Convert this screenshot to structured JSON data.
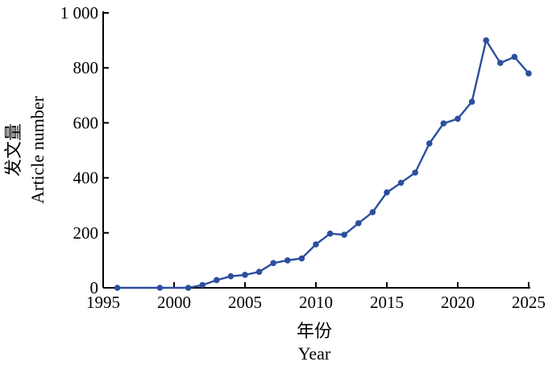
{
  "chart_data": {
    "type": "line",
    "xlabel_cn": "年份",
    "xlabel_en": "Year",
    "ylabel_cn": "发文量",
    "ylabel_en": "Article number",
    "xlim": [
      1995,
      2025
    ],
    "ylim": [
      0,
      1000
    ],
    "x_ticks": [
      1995,
      2000,
      2005,
      2010,
      2015,
      2020,
      2025
    ],
    "x_tick_labels": [
      "1995",
      "2000",
      "2005",
      "2010",
      "2015",
      "2020",
      "2025"
    ],
    "y_ticks": [
      0,
      200,
      400,
      600,
      800,
      1000
    ],
    "y_tick_labels": [
      "0",
      "200",
      "400",
      "600",
      "800",
      "1 000"
    ],
    "grid": false,
    "series": [
      {
        "color": "#2b4f9e",
        "x": [
          1996,
          1999,
          2001,
          2002,
          2003,
          2004,
          2005,
          2006,
          2007,
          2008,
          2009,
          2010,
          2011,
          2012,
          2013,
          2014,
          2015,
          2016,
          2017,
          2018,
          2019,
          2020,
          2021,
          2022,
          2023,
          2024,
          2025
        ],
        "y": [
          0,
          0,
          0,
          10,
          28,
          42,
          47,
          58,
          90,
          100,
          107,
          158,
          197,
          193,
          235,
          275,
          347,
          382,
          419,
          525,
          598,
          615,
          677,
          900,
          818,
          840,
          780
        ]
      }
    ]
  }
}
